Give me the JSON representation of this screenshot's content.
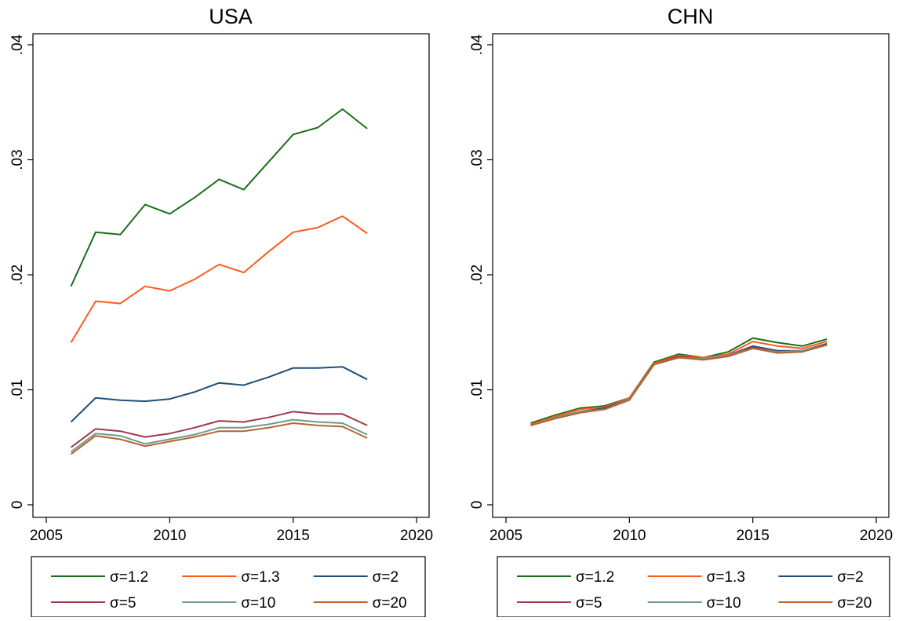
{
  "chart_data": [
    {
      "type": "line",
      "title": "USA",
      "xlabel": "",
      "ylabel": "",
      "xlim": [
        2005,
        2020
      ],
      "ylim": [
        0,
        0.04
      ],
      "x_ticks": [
        "2005",
        "2010",
        "2015",
        "2020"
      ],
      "y_ticks": [
        "0",
        ".01",
        ".02",
        ".03",
        ".04"
      ],
      "grid": false,
      "legend_placement": "bottom",
      "x": [
        2006,
        2007,
        2008,
        2009,
        2010,
        2011,
        2012,
        2013,
        2014,
        2015,
        2016,
        2017,
        2018
      ],
      "series": [
        {
          "name": "σ=1.2",
          "color": "#1a6e1a",
          "values": [
            0.019,
            0.0237,
            0.0235,
            0.0261,
            0.0253,
            0.0267,
            0.0283,
            0.0274,
            0.0298,
            0.0322,
            0.0328,
            0.0344,
            0.0327
          ]
        },
        {
          "name": "σ=1.3",
          "color": "#ff5a1a",
          "values": [
            0.0141,
            0.0177,
            0.0175,
            0.019,
            0.0186,
            0.0196,
            0.0209,
            0.0202,
            0.022,
            0.0237,
            0.0241,
            0.0251,
            0.0236
          ]
        },
        {
          "name": "σ=2",
          "color": "#1f4e79",
          "values": [
            0.0072,
            0.0093,
            0.0091,
            0.009,
            0.0092,
            0.0098,
            0.0106,
            0.0104,
            0.0111,
            0.0119,
            0.0119,
            0.012,
            0.0109
          ]
        },
        {
          "name": "σ=5",
          "color": "#9e3a4a",
          "values": [
            0.005,
            0.0066,
            0.0064,
            0.0059,
            0.0062,
            0.0067,
            0.0073,
            0.0072,
            0.0076,
            0.0081,
            0.0079,
            0.0079,
            0.0069
          ]
        },
        {
          "name": "σ=10",
          "color": "#6f9a8e",
          "values": [
            0.0046,
            0.0062,
            0.006,
            0.0053,
            0.0057,
            0.0061,
            0.0067,
            0.0067,
            0.007,
            0.0074,
            0.0072,
            0.0071,
            0.0061
          ]
        },
        {
          "name": "σ=20",
          "color": "#b5652e",
          "values": [
            0.0044,
            0.006,
            0.0057,
            0.0051,
            0.0055,
            0.0059,
            0.0064,
            0.0064,
            0.0067,
            0.0071,
            0.0069,
            0.0068,
            0.0058
          ]
        }
      ]
    },
    {
      "type": "line",
      "title": "CHN",
      "xlabel": "",
      "ylabel": "",
      "xlim": [
        2005,
        2020
      ],
      "ylim": [
        0,
        0.04
      ],
      "x_ticks": [
        "2005",
        "2010",
        "2015",
        "2020"
      ],
      "y_ticks": [
        "0",
        ".01",
        ".02",
        ".03",
        ".04"
      ],
      "grid": false,
      "legend_placement": "bottom",
      "x": [
        2006,
        2007,
        2008,
        2009,
        2010,
        2011,
        2012,
        2013,
        2014,
        2015,
        2016,
        2017,
        2018
      ],
      "series": [
        {
          "name": "σ=1.2",
          "color": "#1a6e1a",
          "values": [
            0.0071,
            0.0078,
            0.0084,
            0.0086,
            0.0093,
            0.0124,
            0.0131,
            0.0128,
            0.0133,
            0.0145,
            0.0141,
            0.0138,
            0.0144
          ]
        },
        {
          "name": "σ=1.3",
          "color": "#ff5a1a",
          "values": [
            0.007,
            0.0077,
            0.0083,
            0.0085,
            0.0093,
            0.0123,
            0.013,
            0.0128,
            0.0131,
            0.0142,
            0.0138,
            0.0136,
            0.0142
          ]
        },
        {
          "name": "σ=2",
          "color": "#1f4e79",
          "values": [
            0.0069,
            0.0076,
            0.0081,
            0.0084,
            0.0092,
            0.0122,
            0.0129,
            0.0127,
            0.013,
            0.0138,
            0.0134,
            0.0134,
            0.014
          ]
        },
        {
          "name": "σ=5",
          "color": "#9e3a4a",
          "values": [
            0.0069,
            0.0076,
            0.0081,
            0.0083,
            0.0092,
            0.0122,
            0.0129,
            0.0127,
            0.013,
            0.0137,
            0.0133,
            0.0134,
            0.0139
          ]
        },
        {
          "name": "σ=10",
          "color": "#6f9a8e",
          "values": [
            0.0069,
            0.0076,
            0.0081,
            0.0083,
            0.0092,
            0.0122,
            0.0128,
            0.0127,
            0.013,
            0.0136,
            0.0133,
            0.0134,
            0.0139
          ]
        },
        {
          "name": "σ=20",
          "color": "#b5652e",
          "values": [
            0.0069,
            0.0075,
            0.008,
            0.0083,
            0.0091,
            0.0122,
            0.0128,
            0.0126,
            0.0129,
            0.0136,
            0.0132,
            0.0133,
            0.0139
          ]
        }
      ]
    }
  ]
}
